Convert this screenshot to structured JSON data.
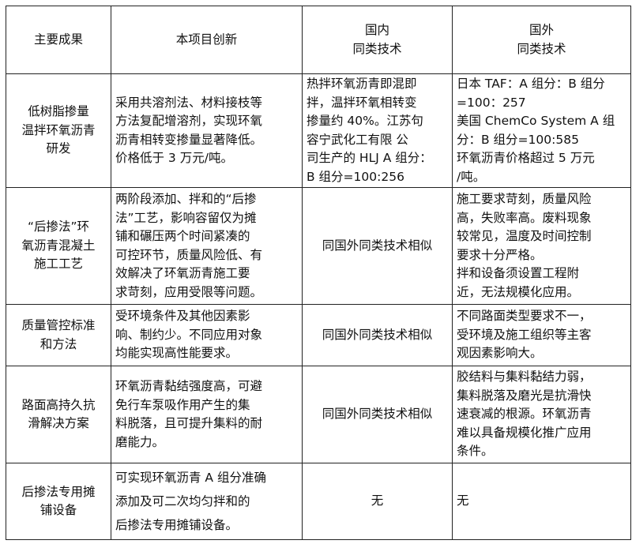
{
  "table": {
    "headers": [
      "主要成果",
      "本项目创新",
      "国内\n同类技术",
      "国外\n同类技术"
    ],
    "rows": [
      {
        "achievement": "低树脂掺量\n温拌环氧沥青\n研发",
        "innovation": "采用共溶剂法、材料接枝等\n方法复配增溶剂，实现环氧\n沥青相转变掺量显著降低。\n价格低于 3 万元/吨。",
        "domestic": "热拌环氧沥青即混即\n拌，温拌环氧相转变\n掺量约 40%。江苏句\n容宁武化工有限 公\n司生产的 HLJ A 组分：\nB 组分=100:256",
        "foreign": "日本 TAF：A 组分：B 组分\n=100：257\n美国 ChemCo System A 组\n分：B 组分=100:585\n环氧沥青价格超过 5 万元\n/吨。"
      },
      {
        "achievement": "“后掺法”环\n氧沥青混凝土\n施工工艺",
        "innovation": "两阶段添加、拌和的“后掺\n法”工艺，影响容留仅为摊\n铺和碾压两个时间紧凑的\n可控环节，质量风险低、有\n效解决了环氧沥青施工要\n求苛刻，应用受限等问题。",
        "domestic": "同国外同类技术相似",
        "foreign": "施工要求苛刻，质量风险\n高，失败率高。废料现象\n较常见，温度及时间控制\n要求十分严格。\n拌和设备须设置工程附\n近，无法规模化应用。"
      },
      {
        "achievement": "质量管控标准\n和方法",
        "innovation": "受环境条件及其他因素影\n响、制约少。不同应用对象\n均能实现高性能要求。",
        "domestic": "同国外同类技术相似",
        "foreign": "不同路面类型要求不一，\n受环境及施工组织等主客\n观因素影响大。"
      },
      {
        "achievement": "路面高持久抗\n滑解决方案",
        "innovation": "环氧沥青黏结强度高，可避\n免行车泵吸作用产生的集\n料脱落，且可提升集料的耐\n磨能力。",
        "domestic": "同国外同类技术相似",
        "foreign": "胶结料与集料黏结力弱，\n集料脱落及磨光是抗滑快\n速衰减的根源。环氧沥青\n难以具备规模化推广应用\n条件。"
      },
      {
        "achievement": "后掺法专用摊\n铺设备",
        "innovation": "可实现环氧沥青 A 组分准确\n添加及可二次均匀拌和的\n后掺法专用摊铺设备。",
        "domestic": "无",
        "foreign": "无"
      }
    ]
  }
}
